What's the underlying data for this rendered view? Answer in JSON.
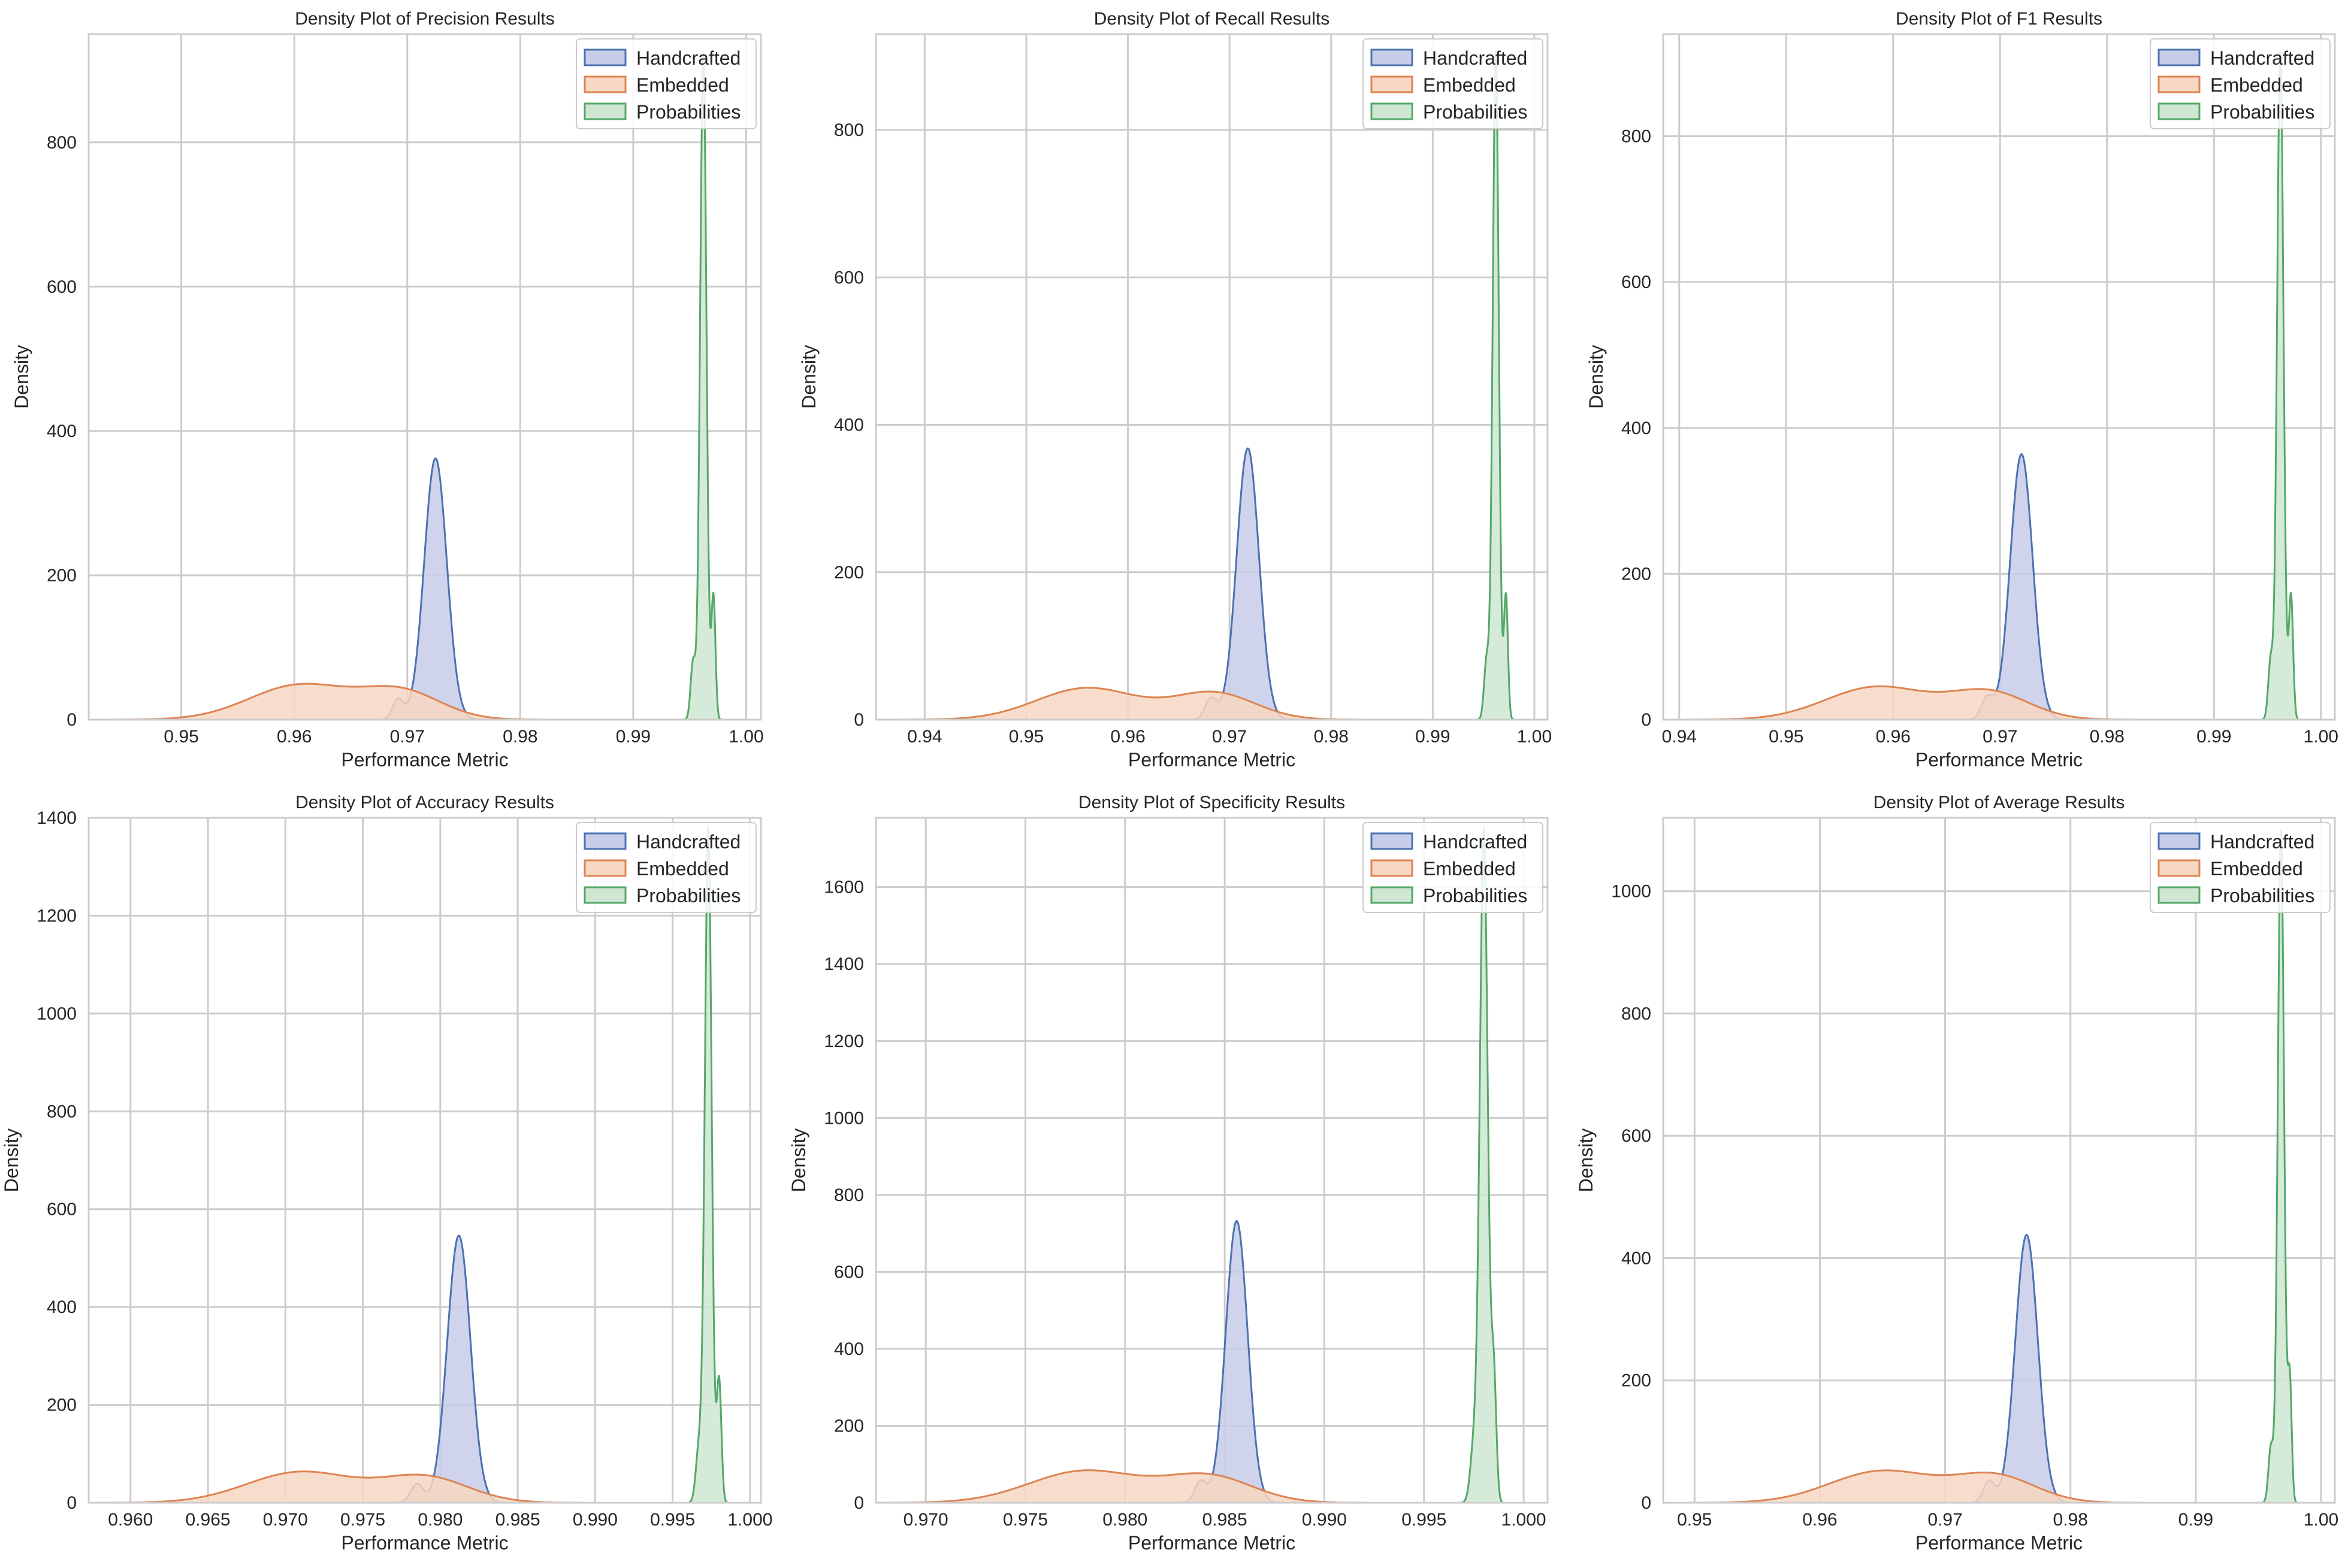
{
  "colors": {
    "Handcrafted": {
      "stroke": "#4c72b0",
      "fill": "#c7cde9"
    },
    "Embedded": {
      "stroke": "#dd8452",
      "fill": "#f8d7c3"
    },
    "Probabilities": {
      "stroke": "#55a868",
      "fill": "#cfe6d2"
    },
    "grid": "#cccccc",
    "spine": "#cccccc",
    "text": "#262626"
  },
  "chart_data": [
    {
      "type": "area",
      "title": "Density Plot of Precision Results",
      "xlabel": "Performance Metric",
      "ylabel": "Density",
      "xlim": [
        0.9418,
        1.0013
      ],
      "ylim": [
        0,
        950
      ],
      "xticks": [
        0.95,
        0.96,
        0.97,
        0.98,
        0.99,
        1.0
      ],
      "xtick_labels": [
        "0.95",
        "0.96",
        "0.97",
        "0.98",
        "0.99",
        "1.00"
      ],
      "yticks": [
        0,
        200,
        400,
        600,
        800
      ],
      "ytick_labels": [
        "0",
        "200",
        "400",
        "600",
        "800"
      ],
      "grid": true,
      "legend": {
        "position": "top-right",
        "entries": [
          "Handcrafted",
          "Embedded",
          "Probabilities"
        ]
      },
      "series": [
        {
          "name": "Handcrafted",
          "components": [
            {
              "mu": 0.9725,
              "sigma": 0.001,
              "peak": 362
            },
            {
              "mu": 0.9692,
              "sigma": 0.0005,
              "peak": 28
            }
          ]
        },
        {
          "name": "Embedded",
          "components": [
            {
              "mu": 0.9605,
              "sigma": 0.0045,
              "peak": 48
            },
            {
              "mu": 0.9695,
              "sigma": 0.0035,
              "peak": 38
            }
          ]
        },
        {
          "name": "Probabilities",
          "components": [
            {
              "mu": 0.9962,
              "sigma": 0.00028,
              "peak": 925
            },
            {
              "mu": 0.9971,
              "sigma": 0.00018,
              "peak": 170
            },
            {
              "mu": 0.9953,
              "sigma": 0.00022,
              "peak": 80
            }
          ]
        }
      ]
    },
    {
      "type": "area",
      "title": "Density Plot of Recall Results",
      "xlabel": "Performance Metric",
      "ylabel": "Density",
      "xlim": [
        0.9352,
        1.0013
      ],
      "ylim": [
        0,
        930
      ],
      "xticks": [
        0.94,
        0.95,
        0.96,
        0.97,
        0.98,
        0.99,
        1.0
      ],
      "xtick_labels": [
        "0.94",
        "0.95",
        "0.96",
        "0.97",
        "0.98",
        "0.99",
        "1.00"
      ],
      "yticks": [
        0,
        200,
        400,
        600,
        800
      ],
      "ytick_labels": [
        "0",
        "200",
        "400",
        "600",
        "800"
      ],
      "grid": true,
      "legend": {
        "position": "top-right",
        "entries": [
          "Handcrafted",
          "Embedded",
          "Probabilities"
        ]
      },
      "series": [
        {
          "name": "Handcrafted",
          "components": [
            {
              "mu": 0.9718,
              "sigma": 0.0011,
              "peak": 368
            },
            {
              "mu": 0.9682,
              "sigma": 0.0006,
              "peak": 28
            }
          ]
        },
        {
          "name": "Embedded",
          "components": [
            {
              "mu": 0.956,
              "sigma": 0.005,
              "peak": 43
            },
            {
              "mu": 0.9685,
              "sigma": 0.004,
              "peak": 36
            }
          ]
        },
        {
          "name": "Probabilities",
          "components": [
            {
              "mu": 0.9962,
              "sigma": 0.0003,
              "peak": 905
            },
            {
              "mu": 0.9972,
              "sigma": 0.0002,
              "peak": 168
            },
            {
              "mu": 0.9953,
              "sigma": 0.00025,
              "peak": 80
            }
          ]
        }
      ]
    },
    {
      "type": "area",
      "title": "Density Plot of F1 Results",
      "xlabel": "Performance Metric",
      "ylabel": "Density",
      "xlim": [
        0.9385,
        1.0013
      ],
      "ylim": [
        0,
        940
      ],
      "xticks": [
        0.94,
        0.95,
        0.96,
        0.97,
        0.98,
        0.99,
        1.0
      ],
      "xtick_labels": [
        "0.94",
        "0.95",
        "0.96",
        "0.97",
        "0.98",
        "0.99",
        "1.00"
      ],
      "yticks": [
        0,
        200,
        400,
        600,
        800
      ],
      "ytick_labels": [
        "0",
        "200",
        "400",
        "600",
        "800"
      ],
      "grid": true,
      "legend": {
        "position": "top-right",
        "entries": [
          "Handcrafted",
          "Embedded",
          "Probabilities"
        ]
      },
      "series": [
        {
          "name": "Handcrafted",
          "components": [
            {
              "mu": 0.972,
              "sigma": 0.00105,
              "peak": 364
            },
            {
              "mu": 0.9688,
              "sigma": 0.00055,
              "peak": 30
            }
          ]
        },
        {
          "name": "Embedded",
          "components": [
            {
              "mu": 0.9585,
              "sigma": 0.0048,
              "peak": 45
            },
            {
              "mu": 0.969,
              "sigma": 0.0037,
              "peak": 37
            }
          ]
        },
        {
          "name": "Probabilities",
          "components": [
            {
              "mu": 0.9962,
              "sigma": 0.0003,
              "peak": 915
            },
            {
              "mu": 0.9972,
              "sigma": 0.0002,
              "peak": 170
            },
            {
              "mu": 0.9953,
              "sigma": 0.00023,
              "peak": 80
            }
          ]
        }
      ]
    },
    {
      "type": "area",
      "title": "Density Plot of Accuracy Results",
      "xlabel": "Performance Metric",
      "ylabel": "Density",
      "xlim": [
        0.9573,
        1.0007
      ],
      "ylim": [
        0,
        1400
      ],
      "xticks": [
        0.96,
        0.965,
        0.97,
        0.975,
        0.98,
        0.985,
        0.99,
        0.995,
        1.0
      ],
      "xtick_labels": [
        "0.960",
        "0.965",
        "0.970",
        "0.975",
        "0.980",
        "0.985",
        "0.990",
        "0.995",
        "1.000"
      ],
      "yticks": [
        0,
        200,
        400,
        600,
        800,
        1000,
        1200,
        1400
      ],
      "ytick_labels": [
        "0",
        "200",
        "400",
        "600",
        "800",
        "1000",
        "1200",
        "1400"
      ],
      "grid": true,
      "legend": {
        "position": "top-right",
        "entries": [
          "Handcrafted",
          "Embedded",
          "Probabilities"
        ]
      },
      "series": [
        {
          "name": "Handcrafted",
          "components": [
            {
              "mu": 0.9812,
              "sigma": 0.00075,
              "peak": 546
            },
            {
              "mu": 0.9785,
              "sigma": 0.0004,
              "peak": 38
            }
          ]
        },
        {
          "name": "Embedded",
          "components": [
            {
              "mu": 0.971,
              "sigma": 0.0035,
              "peak": 63
            },
            {
              "mu": 0.979,
              "sigma": 0.0028,
              "peak": 52
            }
          ]
        },
        {
          "name": "Probabilities",
          "components": [
            {
              "mu": 0.9973,
              "sigma": 0.00022,
              "peak": 1380
            },
            {
              "mu": 0.998,
              "sigma": 0.00015,
              "peak": 250
            },
            {
              "mu": 0.9967,
              "sigma": 0.0002,
              "peak": 110
            }
          ]
        }
      ]
    },
    {
      "type": "area",
      "title": "Density Plot of Specificity Results",
      "xlabel": "Performance Metric",
      "ylabel": "Density",
      "xlim": [
        0.9675,
        1.0012
      ],
      "ylim": [
        0,
        1780
      ],
      "xticks": [
        0.97,
        0.975,
        0.98,
        0.985,
        0.99,
        0.995,
        1.0
      ],
      "xtick_labels": [
        "0.970",
        "0.975",
        "0.980",
        "0.985",
        "0.990",
        "0.995",
        "1.000"
      ],
      "yticks": [
        0,
        200,
        400,
        600,
        800,
        1000,
        1200,
        1400,
        1600
      ],
      "ytick_labels": [
        "0",
        "200",
        "400",
        "600",
        "800",
        "1000",
        "1200",
        "1400",
        "1600"
      ],
      "grid": true,
      "legend": {
        "position": "top-right",
        "entries": [
          "Handcrafted",
          "Embedded",
          "Probabilities"
        ]
      },
      "series": [
        {
          "name": "Handcrafted",
          "components": [
            {
              "mu": 0.9856,
              "sigma": 0.00055,
              "peak": 732
            },
            {
              "mu": 0.9838,
              "sigma": 0.0003,
              "peak": 55
            }
          ]
        },
        {
          "name": "Embedded",
          "components": [
            {
              "mu": 0.978,
              "sigma": 0.0028,
              "peak": 83
            },
            {
              "mu": 0.9842,
              "sigma": 0.0022,
              "peak": 68
            }
          ]
        },
        {
          "name": "Probabilities",
          "components": [
            {
              "mu": 0.998,
              "sigma": 0.0002,
              "peak": 1750
            },
            {
              "mu": 0.9985,
              "sigma": 0.00013,
              "peak": 320
            },
            {
              "mu": 0.9975,
              "sigma": 0.00018,
              "peak": 140
            }
          ]
        }
      ]
    },
    {
      "type": "area",
      "title": "Density Plot of Average Results",
      "xlabel": "Performance Metric",
      "ylabel": "Density",
      "xlim": [
        0.9475,
        1.0011
      ],
      "ylim": [
        0,
        1120
      ],
      "xticks": [
        0.95,
        0.96,
        0.97,
        0.98,
        0.99,
        1.0
      ],
      "xtick_labels": [
        "0.95",
        "0.96",
        "0.97",
        "0.98",
        "0.99",
        "1.00"
      ],
      "yticks": [
        0,
        200,
        400,
        600,
        800,
        1000
      ],
      "ytick_labels": [
        "0",
        "200",
        "400",
        "600",
        "800",
        "1000"
      ],
      "grid": true,
      "legend": {
        "position": "top-right",
        "entries": [
          "Handcrafted",
          "Embedded",
          "Probabilities"
        ]
      },
      "series": [
        {
          "name": "Handcrafted",
          "components": [
            {
              "mu": 0.9765,
              "sigma": 0.0009,
              "peak": 438
            },
            {
              "mu": 0.9735,
              "sigma": 0.00045,
              "peak": 35
            }
          ]
        },
        {
          "name": "Embedded",
          "components": [
            {
              "mu": 0.965,
              "sigma": 0.0042,
              "peak": 52
            },
            {
              "mu": 0.974,
              "sigma": 0.0032,
              "peak": 43
            }
          ]
        },
        {
          "name": "Probabilities",
          "components": [
            {
              "mu": 0.9968,
              "sigma": 0.00025,
              "peak": 1100
            },
            {
              "mu": 0.9975,
              "sigma": 0.00016,
              "peak": 200
            },
            {
              "mu": 0.996,
              "sigma": 0.0002,
              "peak": 90
            }
          ]
        }
      ]
    }
  ]
}
